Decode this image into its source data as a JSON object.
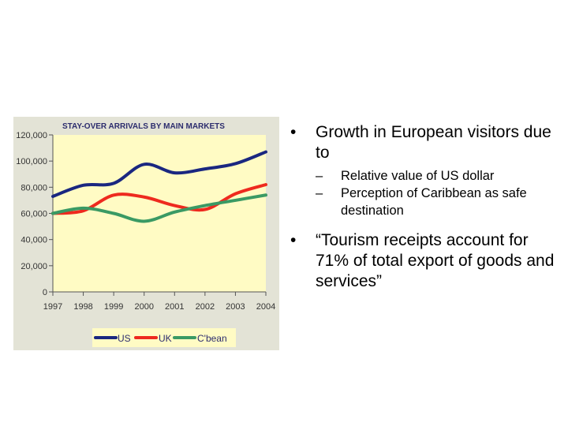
{
  "chart_data": {
    "type": "line",
    "title": "STAY-OVER ARRIVALS BY MAIN MARKETS",
    "xlabel": "",
    "ylabel": "",
    "ylim": [
      0,
      120000
    ],
    "categories": [
      "1997",
      "1998",
      "1999",
      "2000",
      "2001",
      "2002",
      "2003",
      "2004"
    ],
    "y_ticks": [
      "120,000",
      "100,000",
      "80,000",
      "60,000",
      "40,000",
      "20,000",
      "0"
    ],
    "grid": false,
    "legend_position": "bottom-left",
    "series": [
      {
        "name": "US",
        "color": "#1a2780",
        "values": [
          73000,
          81500,
          83000,
          97500,
          91000,
          94000,
          98000,
          107000
        ]
      },
      {
        "name": "UK",
        "color": "#ee2a1e",
        "values": [
          60000,
          62000,
          74000,
          72500,
          66000,
          63000,
          75000,
          82000
        ]
      },
      {
        "name": "C'bean",
        "color": "#3a9a64",
        "values": [
          60000,
          64000,
          60000,
          54000,
          61000,
          66000,
          70000,
          74000
        ]
      }
    ]
  },
  "bullets": {
    "b1": "Growth in European visitors due to",
    "sub1": "Relative value of US dollar",
    "sub2": "Perception of Caribbean as safe destination",
    "b2": "“Tourism receipts account for 71% of total export of goods and services”",
    "bullet_glyph": "•",
    "dash_glyph": "–"
  }
}
